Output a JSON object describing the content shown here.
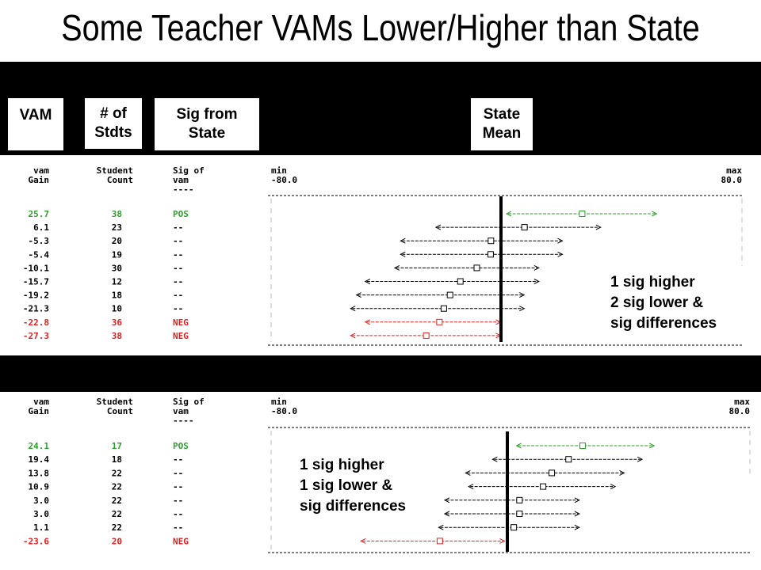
{
  "title": "Some Teacher VAMs Lower/Higher than State",
  "headers": {
    "vam": "VAM",
    "n": "# of\nStdts",
    "sig": "Sig from\nState",
    "state": "State\nMean"
  },
  "notes": [
    "1 sig higher\n2 sig lower &\nsig differences",
    "1 sig higher\n1 sig lower &\nsig differences"
  ],
  "colors": {
    "pos": "#2e9e2e",
    "neg": "#e02020",
    "text": "#000000"
  },
  "chart_data": [
    {
      "type": "table",
      "columns": [
        "vam\nGain",
        "Student\nCount",
        "Sig of\nvam\n----"
      ],
      "axis": {
        "min_label": "min",
        "max_label": "max",
        "min": "-80.0",
        "max": "80.0"
      },
      "state_mean": 0,
      "rows": [
        {
          "gain": "25.7",
          "count": "38",
          "sig": "POS",
          "value": 25.7,
          "lo": 0,
          "hi": 51
        },
        {
          "gain": "6.1",
          "count": "23",
          "sig": "--",
          "value": 6.1,
          "lo": -24,
          "hi": 32
        },
        {
          "gain": "-5.3",
          "count": "20",
          "sig": "--",
          "value": -5.3,
          "lo": -36,
          "hi": 19
        },
        {
          "gain": "-5.4",
          "count": "19",
          "sig": "--",
          "value": -5.4,
          "lo": -36,
          "hi": 19
        },
        {
          "gain": "-10.1",
          "count": "30",
          "sig": "--",
          "value": -10.1,
          "lo": -38,
          "hi": 11
        },
        {
          "gain": "-15.7",
          "count": "12",
          "sig": "--",
          "value": -15.7,
          "lo": -48,
          "hi": 11
        },
        {
          "gain": "-19.2",
          "count": "18",
          "sig": "--",
          "value": -19.2,
          "lo": -51,
          "hi": 6
        },
        {
          "gain": "-21.3",
          "count": "10",
          "sig": "--",
          "value": -21.3,
          "lo": -53,
          "hi": 6
        },
        {
          "gain": "-22.8",
          "count": "36",
          "sig": "NEG",
          "value": -22.8,
          "lo": -48,
          "hi": -2
        },
        {
          "gain": "-27.3",
          "count": "38",
          "sig": "NEG",
          "value": -27.3,
          "lo": -53,
          "hi": -2
        }
      ]
    },
    {
      "type": "table",
      "columns": [
        "vam\nGain",
        "Student\nCount",
        "Sig of\nvam\n----"
      ],
      "axis": {
        "min_label": "min",
        "max_label": "max",
        "min": "-80.0",
        "max": "80.0"
      },
      "state_mean": 0,
      "rows": [
        {
          "gain": "24.1",
          "count": "17",
          "sig": "POS",
          "value": 24.1,
          "lo": 2,
          "hi": 48
        },
        {
          "gain": "19.4",
          "count": "18",
          "sig": "--",
          "value": 19.4,
          "lo": -6,
          "hi": 44
        },
        {
          "gain": "13.8",
          "count": "22",
          "sig": "--",
          "value": 13.8,
          "lo": -15,
          "hi": 38
        },
        {
          "gain": "10.9",
          "count": "22",
          "sig": "--",
          "value": 10.9,
          "lo": -14,
          "hi": 35
        },
        {
          "gain": "3.0",
          "count": "22",
          "sig": "--",
          "value": 3.0,
          "lo": -22,
          "hi": 23
        },
        {
          "gain": "3.0",
          "count": "22",
          "sig": "--",
          "value": 3.0,
          "lo": -22,
          "hi": 23
        },
        {
          "gain": "1.1",
          "count": "22",
          "sig": "--",
          "value": 1.1,
          "lo": -24,
          "hi": 23
        },
        {
          "gain": "-23.6",
          "count": "20",
          "sig": "NEG",
          "value": -23.6,
          "lo": -50,
          "hi": -2
        }
      ]
    }
  ]
}
